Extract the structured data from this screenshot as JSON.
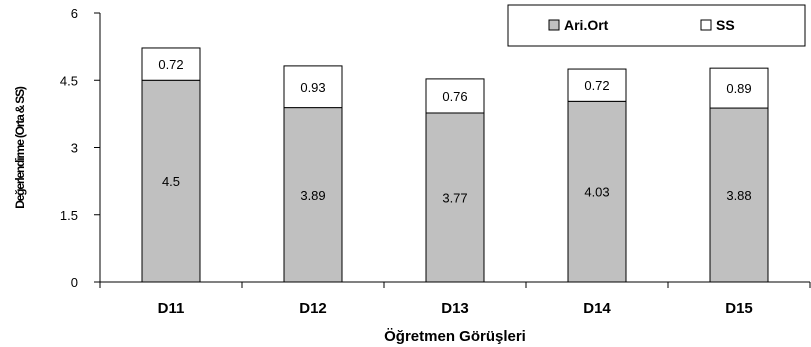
{
  "chart_data": {
    "type": "bar",
    "stacked": true,
    "categories": [
      "D11",
      "D12",
      "D13",
      "D14",
      "D15"
    ],
    "series": [
      {
        "name": "Ari.Ort",
        "values": [
          4.5,
          3.89,
          3.77,
          4.03,
          3.88
        ],
        "color": "#c0c0c0"
      },
      {
        "name": "SS",
        "values": [
          0.72,
          0.93,
          0.76,
          0.72,
          0.89
        ],
        "color": "#ffffff"
      }
    ],
    "xlabel": "Öğretmen Görüşleri",
    "ylabel": "Değerlendirme (Orta & SS)",
    "ylim": [
      0,
      6
    ],
    "yticks": [
      "0",
      "1.5",
      "3",
      "4.5",
      "6"
    ],
    "grid": false,
    "legend_position": "top-right"
  }
}
